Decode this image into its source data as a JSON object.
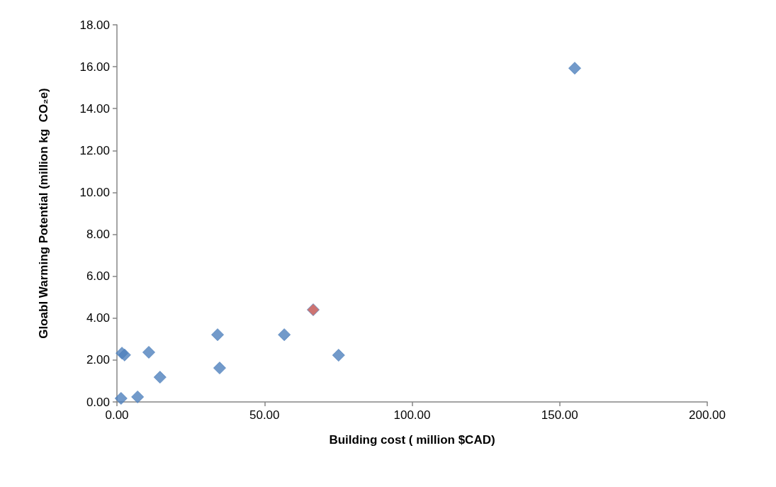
{
  "chart_data": {
    "type": "scatter",
    "xlabel": "Building cost ( million $CAD)",
    "ylabel": "Gloabl Warming Potential (million kg  CO₂e)",
    "marker": "diamond",
    "grid": false,
    "xlim": [
      0,
      200
    ],
    "ylim": [
      0,
      18
    ],
    "xticks": [
      {
        "value": 0,
        "label": "0.00"
      },
      {
        "value": 50,
        "label": "50.00"
      },
      {
        "value": 100,
        "label": "100.00"
      },
      {
        "value": 150,
        "label": "150.00"
      },
      {
        "value": 200,
        "label": "200.00"
      }
    ],
    "yticks": [
      {
        "value": 0,
        "label": "0.00"
      },
      {
        "value": 2,
        "label": "2.00"
      },
      {
        "value": 4,
        "label": "4.00"
      },
      {
        "value": 6,
        "label": "6.00"
      },
      {
        "value": 8,
        "label": "8.00"
      },
      {
        "value": 10,
        "label": "10.00"
      },
      {
        "value": 12,
        "label": "12.00"
      },
      {
        "value": 14,
        "label": "14.00"
      },
      {
        "value": 16,
        "label": "16.00"
      },
      {
        "value": 18,
        "label": "18.00"
      }
    ],
    "series": [
      {
        "color": "#4f81bd",
        "x": [
          1.4,
          7.0,
          1.7,
          2.6,
          10.8,
          14.6,
          34.1,
          34.8,
          56.7,
          75.1,
          155.1
        ],
        "values": [
          0.17,
          0.24,
          2.33,
          2.24,
          2.37,
          1.18,
          3.21,
          1.62,
          3.21,
          2.23,
          15.93
        ]
      },
      {
        "color": "#c0504d",
        "x": [
          66.5
        ],
        "values": [
          4.4
        ]
      }
    ]
  }
}
